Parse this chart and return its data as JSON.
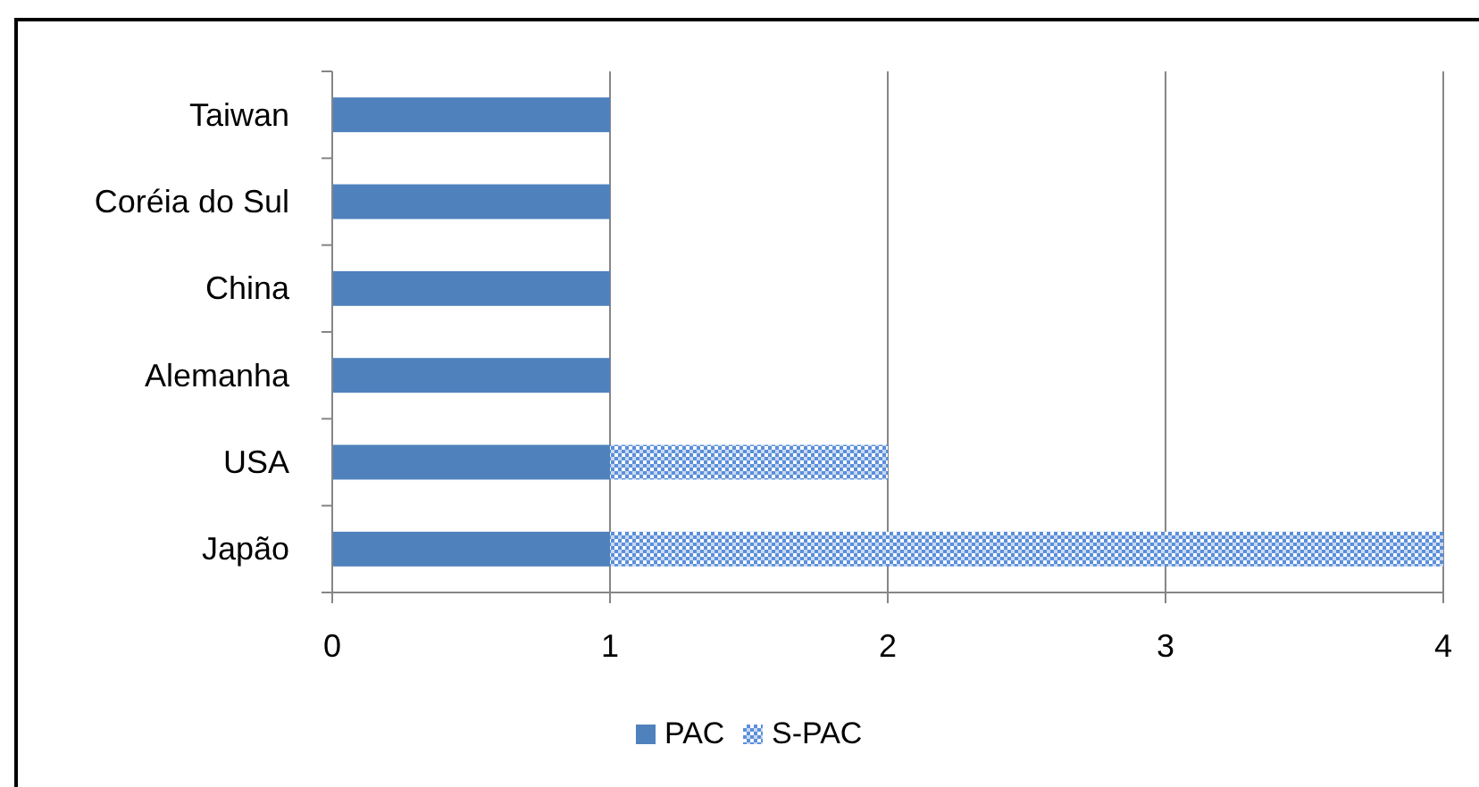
{
  "chart_data": {
    "type": "bar",
    "orientation": "horizontal",
    "stacked": true,
    "categories": [
      "Taiwan",
      "Coréia do Sul",
      "China",
      "Alemanha",
      "USA",
      "Japão"
    ],
    "series": [
      {
        "name": "PAC",
        "color": "#4f81bd",
        "values": [
          1,
          1,
          1,
          1,
          1,
          1
        ]
      },
      {
        "name": "S-PAC",
        "color": "#5b8fd9",
        "values": [
          null,
          null,
          null,
          null,
          1,
          3
        ]
      }
    ],
    "xlim": [
      0,
      4
    ],
    "xticks": [
      0,
      1,
      2,
      3,
      4
    ],
    "grid": "x",
    "legend": "bottom"
  }
}
